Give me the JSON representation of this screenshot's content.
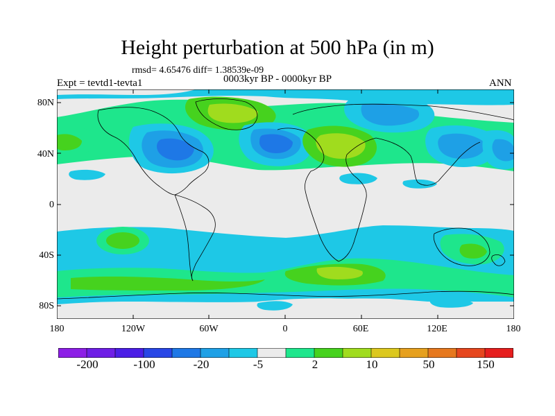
{
  "title": "Height perturbation at 500 hPa (in m)",
  "stats": "rmsd= 4.65476 diff= 1.38539e-09",
  "period": "0003kyr BP - 0000kyr BP",
  "experiment": "Expt = tevtd1-tevta1",
  "season": "ANN",
  "lat_ticks": [
    "80N",
    "40N",
    "0",
    "40S",
    "80S"
  ],
  "lon_ticks": [
    "180",
    "120W",
    "60W",
    "0",
    "60E",
    "120E",
    "180"
  ],
  "colorbar": {
    "colors": [
      "#8c1ee6",
      "#6e1ee6",
      "#4b1ee6",
      "#2846e6",
      "#1e78e6",
      "#1ea0e6",
      "#1ec8e6",
      "#ebebeb",
      "#1ee68c",
      "#46d21e",
      "#a0dc1e",
      "#dcc81e",
      "#e6a01e",
      "#e6781e",
      "#e6461e",
      "#e61e1e"
    ],
    "labels": [
      "-200",
      "-100",
      "-20",
      "-5",
      "2",
      "10",
      "50",
      "150"
    ]
  },
  "field_colors": {
    "neutral": "#ebebeb",
    "light_blue": "#1ec8e6",
    "mid_blue": "#1ea0e6",
    "blue": "#1e78e6",
    "dark_blue": "#2846e6",
    "teal": "#1ee68c",
    "green": "#46d21e",
    "yellow_green": "#a0dc1e"
  }
}
